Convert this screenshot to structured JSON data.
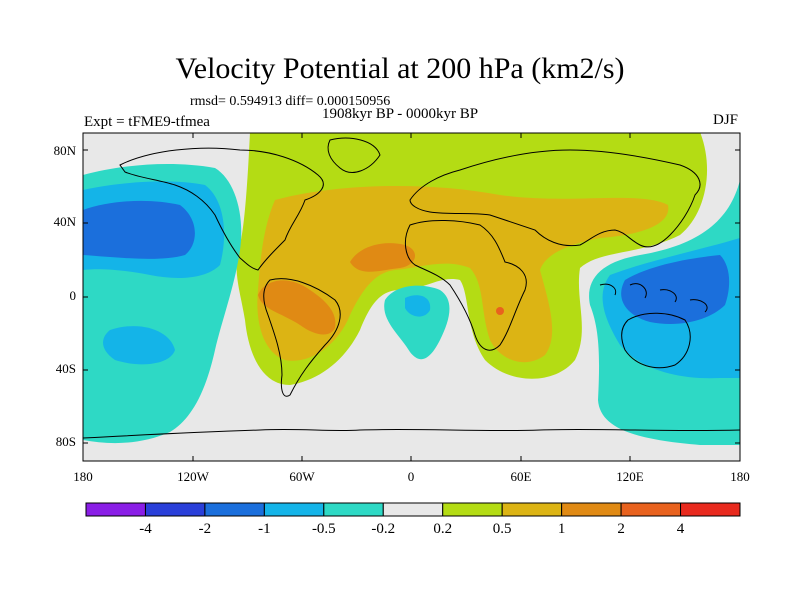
{
  "title": "Velocity Potential at 200 hPa (km2/s)",
  "stats_line": "rmsd= 0.594913 diff= 0.000150956",
  "period": "1908kyr BP - 0000kyr BP",
  "experiment": "Expt = tFME9-tfmea",
  "season": "DJF",
  "lat_labels": [
    "80N",
    "40N",
    "0",
    "40S",
    "80S"
  ],
  "lon_labels": [
    "180",
    "120W",
    "60W",
    "0",
    "60E",
    "120E",
    "180"
  ],
  "colorbar": {
    "labels": [
      "-4",
      "-2",
      "-1",
      "-0.5",
      "-0.2",
      "0.2",
      "0.5",
      "1",
      "2",
      "4"
    ],
    "colors": [
      "#8a1ee6",
      "#2a3fd9",
      "#1b6fdc",
      "#14b4e8",
      "#2ed9c5",
      "#e8e8e8",
      "#b4dc14",
      "#dcb414",
      "#e08a14",
      "#e8621e",
      "#e82a1e"
    ]
  }
}
